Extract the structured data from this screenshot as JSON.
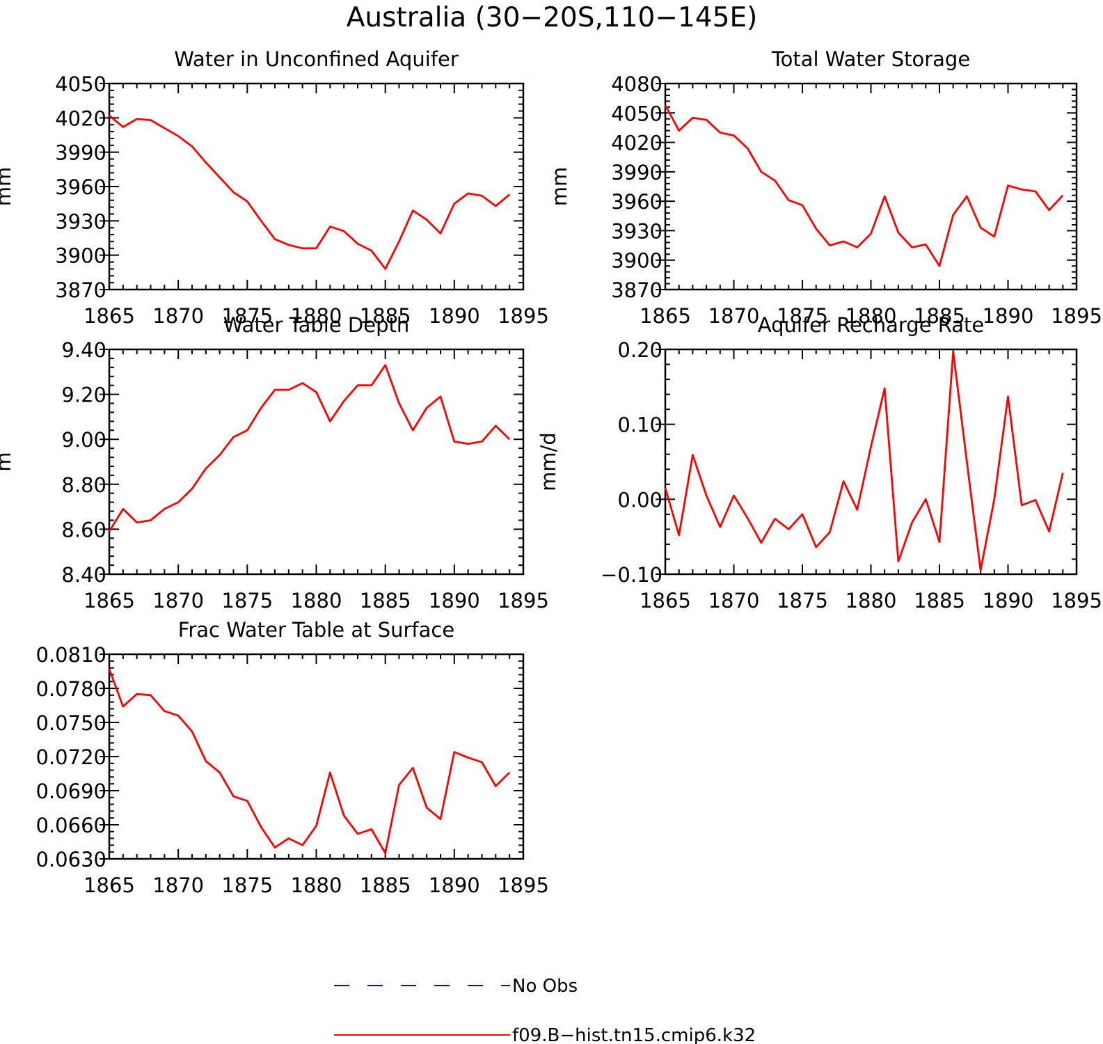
{
  "figure": {
    "title": "Australia (30−20S,110−145E)"
  },
  "legend": {
    "entries": [
      {
        "label": "No Obs",
        "color": "#0000ff",
        "style": "dashed"
      },
      {
        "label": "f09.B−hist.tn15.cmip6.k32",
        "color": "#ff0000",
        "style": "solid"
      }
    ]
  },
  "colors": {
    "series": "#ff0000",
    "axes": "#000000",
    "obs": "#0000ff"
  },
  "chart_data": [
    {
      "type": "line",
      "title": "Water in Unconfined Aquifer",
      "xlabel": "",
      "ylabel": "mm",
      "xlim": [
        1865,
        1895
      ],
      "ylim": [
        3870,
        4050
      ],
      "xticks": [
        1865,
        1870,
        1875,
        1880,
        1885,
        1890,
        1895
      ],
      "yticks": [
        "3870",
        "3900",
        "3930",
        "3960",
        "3990",
        "4020",
        "4050"
      ],
      "grid": false,
      "series": [
        {
          "name": "f09.B−hist.tn15.cmip6.k32",
          "x": [
            1865,
            1866,
            1867,
            1868,
            1869,
            1870,
            1871,
            1872,
            1873,
            1874,
            1875,
            1876,
            1877,
            1878,
            1879,
            1880,
            1881,
            1882,
            1883,
            1884,
            1885,
            1886,
            1887,
            1888,
            1889,
            1890,
            1891,
            1892,
            1893,
            1894
          ],
          "values": [
            4022,
            4012,
            4019,
            4018,
            4011,
            4004,
            3995,
            3981,
            3968,
            3955,
            3947,
            3930,
            3914,
            3909,
            3906,
            3906,
            3925,
            3921,
            3910,
            3904,
            3888,
            3912,
            3939,
            3931,
            3919,
            3945,
            3954,
            3952,
            3943,
            3953
          ]
        }
      ]
    },
    {
      "type": "line",
      "title": "Total Water Storage",
      "xlabel": "",
      "ylabel": "mm",
      "xlim": [
        1865,
        1895
      ],
      "ylim": [
        3870,
        4080
      ],
      "xticks": [
        1865,
        1870,
        1875,
        1880,
        1885,
        1890,
        1895
      ],
      "yticks": [
        "3870",
        "3900",
        "3930",
        "3960",
        "3990",
        "4020",
        "4050",
        "4080"
      ],
      "grid": false,
      "series": [
        {
          "name": "f09.B−hist.tn15.cmip6.k32",
          "x": [
            1865,
            1866,
            1867,
            1868,
            1869,
            1870,
            1871,
            1872,
            1873,
            1874,
            1875,
            1876,
            1877,
            1878,
            1879,
            1880,
            1881,
            1882,
            1883,
            1884,
            1885,
            1886,
            1887,
            1888,
            1889,
            1890,
            1891,
            1892,
            1893,
            1894
          ],
          "values": [
            4058,
            4032,
            4045,
            4043,
            4030,
            4027,
            4014,
            3990,
            3981,
            3961,
            3956,
            3932,
            3915,
            3919,
            3913,
            3927,
            3965,
            3928,
            3913,
            3916,
            3894,
            3946,
            3965,
            3933,
            3924,
            3976,
            3972,
            3970,
            3951,
            3966
          ]
        }
      ]
    },
    {
      "type": "line",
      "title": "Water Table Depth",
      "xlabel": "",
      "ylabel": "m",
      "xlim": [
        1865,
        1895
      ],
      "ylim": [
        8.4,
        9.4
      ],
      "xticks": [
        1865,
        1870,
        1875,
        1880,
        1885,
        1890,
        1895
      ],
      "yticks": [
        "8.40",
        "8.60",
        "8.80",
        "9.00",
        "9.20",
        "9.40"
      ],
      "grid": false,
      "series": [
        {
          "name": "f09.B−hist.tn15.cmip6.k32",
          "x": [
            1865,
            1866,
            1867,
            1868,
            1869,
            1870,
            1871,
            1872,
            1873,
            1874,
            1875,
            1876,
            1877,
            1878,
            1879,
            1880,
            1881,
            1882,
            1883,
            1884,
            1885,
            1886,
            1887,
            1888,
            1889,
            1890,
            1891,
            1892,
            1893,
            1894
          ],
          "values": [
            8.59,
            8.69,
            8.63,
            8.64,
            8.69,
            8.72,
            8.78,
            8.87,
            8.93,
            9.01,
            9.04,
            9.14,
            9.22,
            9.22,
            9.25,
            9.21,
            9.08,
            9.17,
            9.24,
            9.24,
            9.33,
            9.16,
            9.04,
            9.14,
            9.19,
            8.99,
            8.98,
            8.99,
            9.06,
            9.0
          ]
        }
      ]
    },
    {
      "type": "line",
      "title": "Aquifer Recharge Rate",
      "xlabel": "",
      "ylabel": "mm/d",
      "xlim": [
        1865,
        1895
      ],
      "ylim": [
        -0.1,
        0.2
      ],
      "xticks": [
        1865,
        1870,
        1875,
        1880,
        1885,
        1890,
        1895
      ],
      "yticks": [
        "−0.10",
        "0.00",
        "0.10",
        "0.20"
      ],
      "grid": false,
      "series": [
        {
          "name": "f09.B−hist.tn15.cmip6.k32",
          "x": [
            1865,
            1866,
            1867,
            1868,
            1869,
            1870,
            1871,
            1872,
            1873,
            1874,
            1875,
            1876,
            1877,
            1878,
            1879,
            1880,
            1881,
            1882,
            1883,
            1884,
            1885,
            1886,
            1887,
            1888,
            1889,
            1890,
            1891,
            1892,
            1893,
            1894
          ],
          "values": [
            0.015,
            -0.048,
            0.059,
            0.005,
            -0.037,
            0.005,
            -0.025,
            -0.058,
            -0.026,
            -0.04,
            -0.02,
            -0.064,
            -0.044,
            0.024,
            -0.014,
            0.07,
            0.148,
            -0.083,
            -0.031,
            0.0,
            -0.057,
            0.197,
            0.05,
            -0.095,
            0.0,
            0.137,
            -0.008,
            -0.001,
            -0.043,
            0.035
          ]
        }
      ]
    },
    {
      "type": "line",
      "title": "Frac Water Table at Surface",
      "xlabel": "",
      "ylabel": "",
      "xlim": [
        1865,
        1895
      ],
      "ylim": [
        0.063,
        0.081
      ],
      "xticks": [
        1865,
        1870,
        1875,
        1880,
        1885,
        1890,
        1895
      ],
      "yticks": [
        "0.0630",
        "0.0660",
        "0.0690",
        "0.0720",
        "0.0750",
        "0.0780",
        "0.0810"
      ],
      "grid": false,
      "series": [
        {
          "name": "f09.B−hist.tn15.cmip6.k32",
          "x": [
            1865,
            1866,
            1867,
            1868,
            1869,
            1870,
            1871,
            1872,
            1873,
            1874,
            1875,
            1876,
            1877,
            1878,
            1879,
            1880,
            1881,
            1882,
            1883,
            1884,
            1885,
            1886,
            1887,
            1888,
            1889,
            1890,
            1891,
            1892,
            1893,
            1894
          ],
          "values": [
            0.0797,
            0.0764,
            0.0775,
            0.0774,
            0.076,
            0.0756,
            0.0742,
            0.0716,
            0.0706,
            0.0685,
            0.0681,
            0.0658,
            0.064,
            0.0648,
            0.0642,
            0.0659,
            0.0706,
            0.0668,
            0.0652,
            0.0656,
            0.0635,
            0.0695,
            0.071,
            0.0675,
            0.0665,
            0.0724,
            0.0719,
            0.0715,
            0.0694,
            0.0706
          ]
        }
      ]
    }
  ]
}
